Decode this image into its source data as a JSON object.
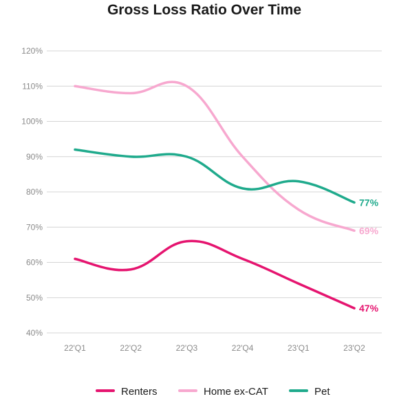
{
  "chart_data": {
    "type": "line",
    "title": "Gross Loss Ratio Over Time",
    "xlabel": "",
    "ylabel": "",
    "categories": [
      "22'Q1",
      "22'Q2",
      "22'Q3",
      "22'Q4",
      "23'Q1",
      "23'Q2"
    ],
    "y_ticks": [
      "40%",
      "50%",
      "60%",
      "70%",
      "80%",
      "90%",
      "100%",
      "110%",
      "120%"
    ],
    "ylim": [
      40,
      120
    ],
    "grid": true,
    "legend_position": "bottom",
    "series": [
      {
        "name": "Renters",
        "color": "#e5146f",
        "values": [
          61,
          58,
          66,
          61,
          54,
          47
        ],
        "end_label": "47%"
      },
      {
        "name": "Home ex-CAT",
        "color": "#f7a8cf",
        "values": [
          110,
          108,
          110,
          90,
          75,
          69
        ],
        "end_label": "69%"
      },
      {
        "name": "Pet",
        "color": "#1faa8c",
        "values": [
          92,
          90,
          90,
          81,
          83,
          77
        ],
        "end_label": "77%"
      }
    ]
  }
}
